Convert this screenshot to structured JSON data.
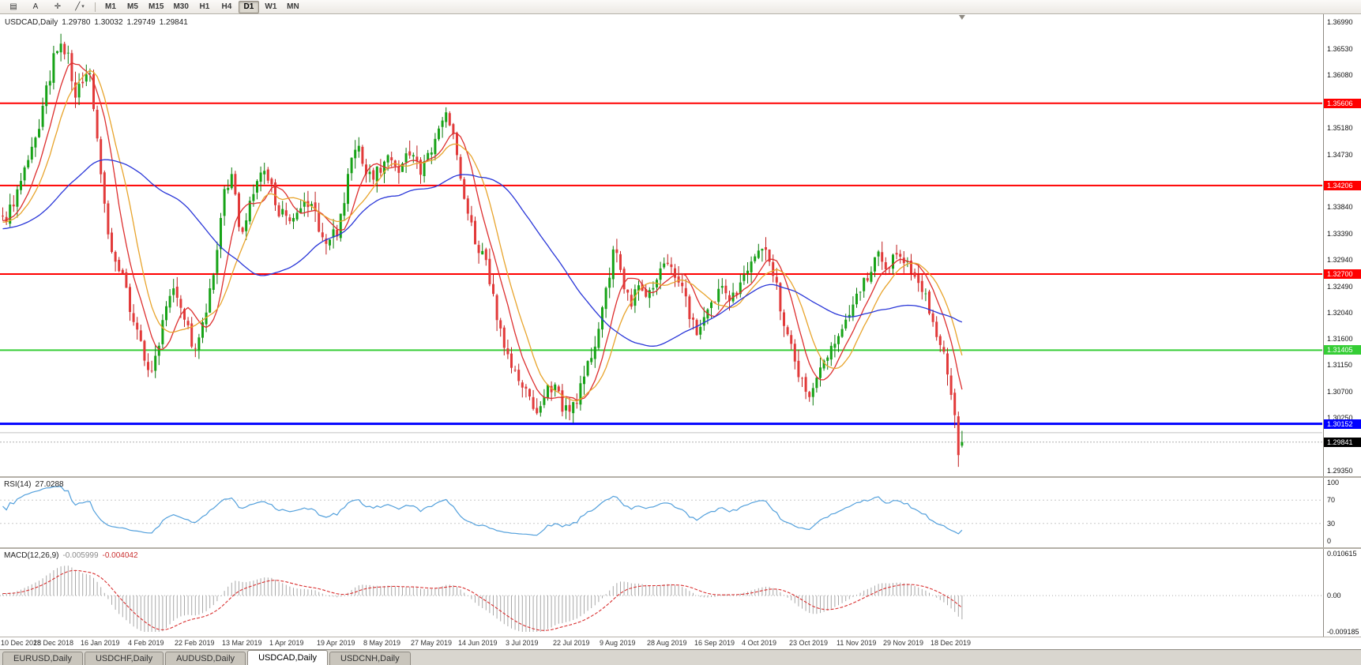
{
  "toolbar": {
    "icon_buttons": [
      {
        "name": "charts-grid-icon",
        "glyph": "▤"
      },
      {
        "name": "text-tool-icon",
        "glyph": "A"
      },
      {
        "name": "crosshair-icon",
        "glyph": "✛"
      },
      {
        "name": "line-tools-icon",
        "glyph": "╱",
        "dropdown": true
      }
    ],
    "timeframes": [
      "M1",
      "M5",
      "M15",
      "M30",
      "H1",
      "H4",
      "D1",
      "W1",
      "MN"
    ],
    "active_timeframe": "D1"
  },
  "chart": {
    "symbol_label": "USDCAD,Daily",
    "ohlc": {
      "open": "1.29780",
      "high": "1.30032",
      "low": "1.29749",
      "close": "1.29841"
    },
    "price_scale": {
      "min": 1.2926,
      "max": 1.3712,
      "labels": [
        "1.36990",
        "1.36530",
        "1.36080",
        "1.35180",
        "1.34730",
        "1.33840",
        "1.33390",
        "1.32940",
        "1.32490",
        "1.32040",
        "1.31600",
        "1.31150",
        "1.30700",
        "1.30250",
        "1.29350"
      ]
    },
    "hlines": [
      {
        "name": "resistance-1",
        "value": 1.35606,
        "label": "1.35606",
        "color": "#ff0000",
        "width": 2
      },
      {
        "name": "resistance-2",
        "value": 1.34206,
        "label": "1.34206",
        "color": "#ff0000",
        "width": 2
      },
      {
        "name": "resistance-3",
        "value": 1.327,
        "label": "1.32700",
        "color": "#ff0000",
        "width": 2
      },
      {
        "name": "support-green",
        "value": 1.31405,
        "label": "1.31405",
        "color": "#35cd35",
        "width": 2
      },
      {
        "name": "support-blue",
        "value": 1.30152,
        "label": "1.30152",
        "color": "#0000ff",
        "width": 3
      },
      {
        "name": "minor-gray",
        "value": 1.3,
        "label": "",
        "color": "#c0c0c0",
        "width": 1
      }
    ],
    "bid": {
      "value": 1.29841,
      "label": "1.29841",
      "line_color": "#b0b0b0",
      "badge_bg": "#000000",
      "badge_fg": "#ffffff"
    },
    "candles": {
      "count": 265,
      "up_fill": "#17a317",
      "up_stroke": "#0c7a0c",
      "down_fill": "#e23a3a",
      "down_stroke": "#bf1d1d"
    },
    "moving_averages": [
      {
        "name": "ma-fast-red",
        "period": 8,
        "color": "#dd2f2f"
      },
      {
        "name": "ma-mid-orange",
        "period": 13,
        "color": "#e8a42c"
      },
      {
        "name": "ma-slow-blue",
        "period": 45,
        "color": "#2936d8"
      }
    ],
    "series": {
      "seed": 9,
      "noise": 0.0024,
      "pad_waypoints": [
        [
          -60,
          1.3315
        ],
        [
          -35,
          1.334
        ],
        [
          -15,
          1.335
        ]
      ],
      "waypoints": [
        [
          0,
          1.3358
        ],
        [
          3,
          1.3395
        ],
        [
          6,
          1.344
        ],
        [
          9,
          1.3495
        ],
        [
          12,
          1.358
        ],
        [
          14,
          1.3635
        ],
        [
          16,
          1.3655
        ],
        [
          18,
          1.364
        ],
        [
          20,
          1.3565
        ],
        [
          22,
          1.3605
        ],
        [
          24,
          1.361
        ],
        [
          26,
          1.35
        ],
        [
          28,
          1.339
        ],
        [
          30,
          1.33
        ],
        [
          33,
          1.326
        ],
        [
          36,
          1.3195
        ],
        [
          39,
          1.313
        ],
        [
          41,
          1.3095
        ],
        [
          43,
          1.316
        ],
        [
          45,
          1.3225
        ],
        [
          47,
          1.3255
        ],
        [
          49,
          1.322
        ],
        [
          51,
          1.3175
        ],
        [
          53,
          1.3135
        ],
        [
          55,
          1.318
        ],
        [
          57,
          1.3235
        ],
        [
          59,
          1.33
        ],
        [
          61,
          1.3415
        ],
        [
          63,
          1.343
        ],
        [
          65,
          1.336
        ],
        [
          66,
          1.3345
        ],
        [
          68,
          1.3385
        ],
        [
          70,
          1.343
        ],
        [
          72,
          1.344
        ],
        [
          74,
          1.3415
        ],
        [
          76,
          1.338
        ],
        [
          79,
          1.335
        ],
        [
          81,
          1.3365
        ],
        [
          83,
          1.3385
        ],
        [
          85,
          1.339
        ],
        [
          87,
          1.335
        ],
        [
          89,
          1.332
        ],
        [
          92,
          1.3345
        ],
        [
          94,
          1.34
        ],
        [
          96,
          1.347
        ],
        [
          98,
          1.3485
        ],
        [
          100,
          1.3445
        ],
        [
          102,
          1.3435
        ],
        [
          105,
          1.346
        ],
        [
          107,
          1.3475
        ],
        [
          109,
          1.345
        ],
        [
          111,
          1.3465
        ],
        [
          113,
          1.348
        ],
        [
          115,
          1.3445
        ],
        [
          117,
          1.3465
        ],
        [
          119,
          1.349
        ],
        [
          121,
          1.354
        ],
        [
          122,
          1.3555
        ],
        [
          124,
          1.3505
        ],
        [
          126,
          1.343
        ],
        [
          128,
          1.337
        ],
        [
          130,
          1.333
        ],
        [
          131,
          1.331
        ],
        [
          133,
          1.3285
        ],
        [
          135,
          1.323
        ],
        [
          137,
          1.3175
        ],
        [
          139,
          1.313
        ],
        [
          141,
          1.31
        ],
        [
          144,
          1.3065
        ],
        [
          146,
          1.3045
        ],
        [
          148,
          1.3035
        ],
        [
          150,
          1.307
        ],
        [
          152,
          1.309
        ],
        [
          154,
          1.3045
        ],
        [
          156,
          1.303
        ],
        [
          158,
          1.306
        ],
        [
          160,
          1.309
        ],
        [
          162,
          1.3135
        ],
        [
          164,
          1.318
        ],
        [
          166,
          1.324
        ],
        [
          168,
          1.33
        ],
        [
          169,
          1.331
        ],
        [
          171,
          1.324
        ],
        [
          173,
          1.3225
        ],
        [
          175,
          1.325
        ],
        [
          177,
          1.3235
        ],
        [
          179,
          1.324
        ],
        [
          181,
          1.327
        ],
        [
          183,
          1.3295
        ],
        [
          185,
          1.3275
        ],
        [
          187,
          1.3245
        ],
        [
          189,
          1.3205
        ],
        [
          191,
          1.317
        ],
        [
          193,
          1.3185
        ],
        [
          196,
          1.3225
        ],
        [
          198,
          1.325
        ],
        [
          200,
          1.3235
        ],
        [
          202,
          1.324
        ],
        [
          204,
          1.326
        ],
        [
          206,
          1.3285
        ],
        [
          208,
          1.3315
        ],
        [
          209,
          1.332
        ],
        [
          211,
          1.3295
        ],
        [
          213,
          1.3245
        ],
        [
          215,
          1.3185
        ],
        [
          217,
          1.3155
        ],
        [
          219,
          1.3105
        ],
        [
          221,
          1.307
        ],
        [
          222,
          1.306
        ],
        [
          224,
          1.309
        ],
        [
          226,
          1.312
        ],
        [
          228,
          1.315
        ],
        [
          230,
          1.3165
        ],
        [
          232,
          1.3185
        ],
        [
          234,
          1.321
        ],
        [
          235,
          1.3225
        ],
        [
          237,
          1.3255
        ],
        [
          239,
          1.328
        ],
        [
          241,
          1.33
        ],
        [
          243,
          1.3285
        ],
        [
          245,
          1.3295
        ],
        [
          248,
          1.33
        ],
        [
          250,
          1.328
        ],
        [
          252,
          1.3255
        ],
        [
          254,
          1.3225
        ],
        [
          256,
          1.319
        ],
        [
          258,
          1.3155
        ],
        [
          259,
          1.3135
        ],
        [
          260,
          1.3105
        ],
        [
          261,
          1.307
        ],
        [
          262,
          1.303
        ],
        [
          263,
          1.2962
        ],
        [
          264,
          1.29841
        ]
      ],
      "forced_candles": {
        "262": [
          1.3068,
          1.3075,
          1.3008,
          1.303
        ],
        "263": [
          1.3028,
          1.3036,
          1.2942,
          1.2962
        ],
        "264": [
          1.2978,
          1.30032,
          1.29749,
          1.29841
        ]
      }
    },
    "shift_marker_index": 264,
    "dates": {
      "first_tick_index": 1,
      "tick_step": 13,
      "labels": [
        "10 Dec 2018",
        "28 Dec 2018",
        "16 Jan 2019",
        "4 Feb 2019",
        "22 Feb 2019",
        "13 Mar 2019",
        "1 Apr 2019",
        "19 Apr 2019",
        "8 May 2019",
        "27 May 2019",
        "14 Jun 2019",
        "3 Jul 2019",
        "22 Jul 2019",
        "9 Aug 2019",
        "28 Aug 2019",
        "16 Sep 2019",
        "4 Oct 2019",
        "23 Oct 2019",
        "11 Nov 2019",
        "29 Nov 2019",
        "18 Dec 2019"
      ]
    }
  },
  "rsi": {
    "title": "RSI(14)",
    "value": "27.0288",
    "period": 14,
    "line_color": "#53a0dc",
    "levels": [
      {
        "label": "100",
        "value": 100,
        "line": false
      },
      {
        "label": "70",
        "value": 70,
        "line": true
      },
      {
        "label": "30",
        "value": 30,
        "line": true
      },
      {
        "label": "0",
        "value": 0,
        "line": false
      }
    ]
  },
  "macd": {
    "title": "MACD(12,26,9)",
    "value_main": "-0.005999",
    "value_signal": "-0.004042",
    "fast": 12,
    "slow": 26,
    "signal": 9,
    "hist_color": "#a8a8a8",
    "signal_color": "#d93030",
    "scale": {
      "min": -0.009185,
      "max": 0.010615
    },
    "levels": [
      {
        "label": "0.010615",
        "value": 0.010615
      },
      {
        "label": "0.00",
        "value": 0
      },
      {
        "label": "-0.009185",
        "value": -0.009185
      }
    ]
  },
  "tabs": {
    "items": [
      {
        "label": "EURUSD,Daily",
        "active": false
      },
      {
        "label": "USDCHF,Daily",
        "active": false
      },
      {
        "label": "AUDUSD,Daily",
        "active": false
      },
      {
        "label": "USDCAD,Daily",
        "active": true
      },
      {
        "label": "USDCNH,Daily",
        "active": false
      }
    ]
  }
}
